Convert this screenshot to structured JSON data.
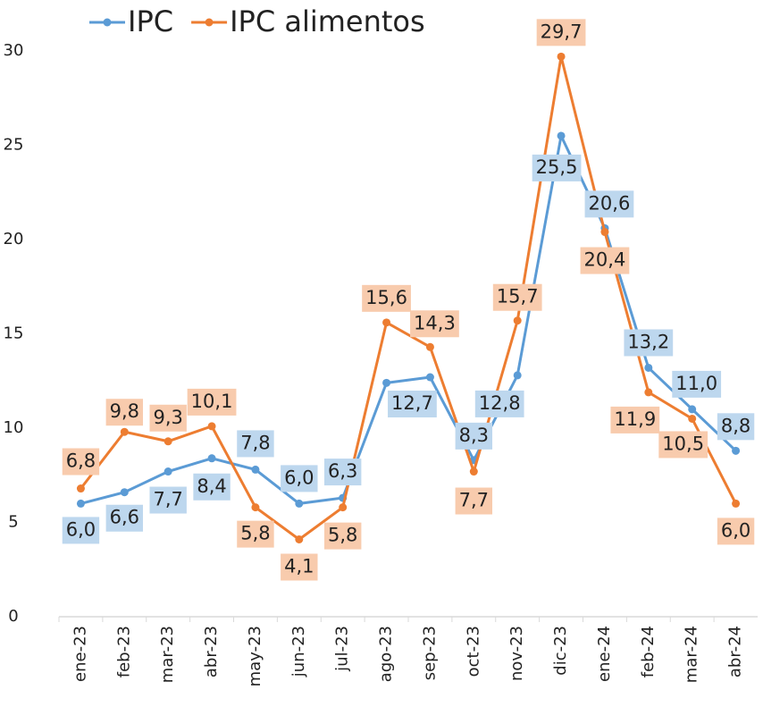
{
  "chart_data": {
    "type": "line",
    "categories": [
      "ene-23",
      "feb-23",
      "mar-23",
      "abr-23",
      "may-23",
      "jun-23",
      "jul-23",
      "ago-23",
      "sep-23",
      "oct-23",
      "nov-23",
      "dic-23",
      "ene-24",
      "feb-24",
      "mar-24",
      "abr-24"
    ],
    "series": [
      {
        "name": "IPC",
        "color": "#5b9bd5",
        "label_bg": "#bdd7ee",
        "values": [
          6.0,
          6.6,
          7.7,
          8.4,
          7.8,
          6.0,
          6.3,
          12.4,
          12.7,
          8.3,
          12.8,
          25.5,
          20.6,
          13.2,
          11.0,
          8.8
        ],
        "value_labels": [
          "6,0",
          "6,6",
          "7,7",
          "8,4",
          "7,8",
          "6,0",
          "6,3",
          null,
          "12,7",
          "8,3",
          "12,8",
          "25,5",
          "20,6",
          "13,2",
          "11,0",
          "8,8"
        ]
      },
      {
        "name": "IPC alimentos",
        "color": "#ed7d31",
        "label_bg": "#f8cbad",
        "values": [
          6.8,
          9.8,
          9.3,
          10.1,
          5.8,
          4.1,
          5.8,
          15.6,
          14.3,
          7.7,
          15.7,
          29.7,
          20.4,
          11.9,
          10.5,
          6.0
        ],
        "value_labels": [
          "6,8",
          "9,8",
          "9,3",
          "10,1",
          "5,8",
          "4,1",
          "5,8",
          "15,6",
          "14,3",
          "7,7",
          "15,7",
          "29,7",
          "20,4",
          "11,9",
          "10,5",
          "6,0"
        ]
      }
    ],
    "ylim": [
      0,
      30
    ],
    "yticks": [
      0,
      5,
      10,
      15,
      20,
      25,
      30
    ],
    "grid": false,
    "legend": "top"
  }
}
